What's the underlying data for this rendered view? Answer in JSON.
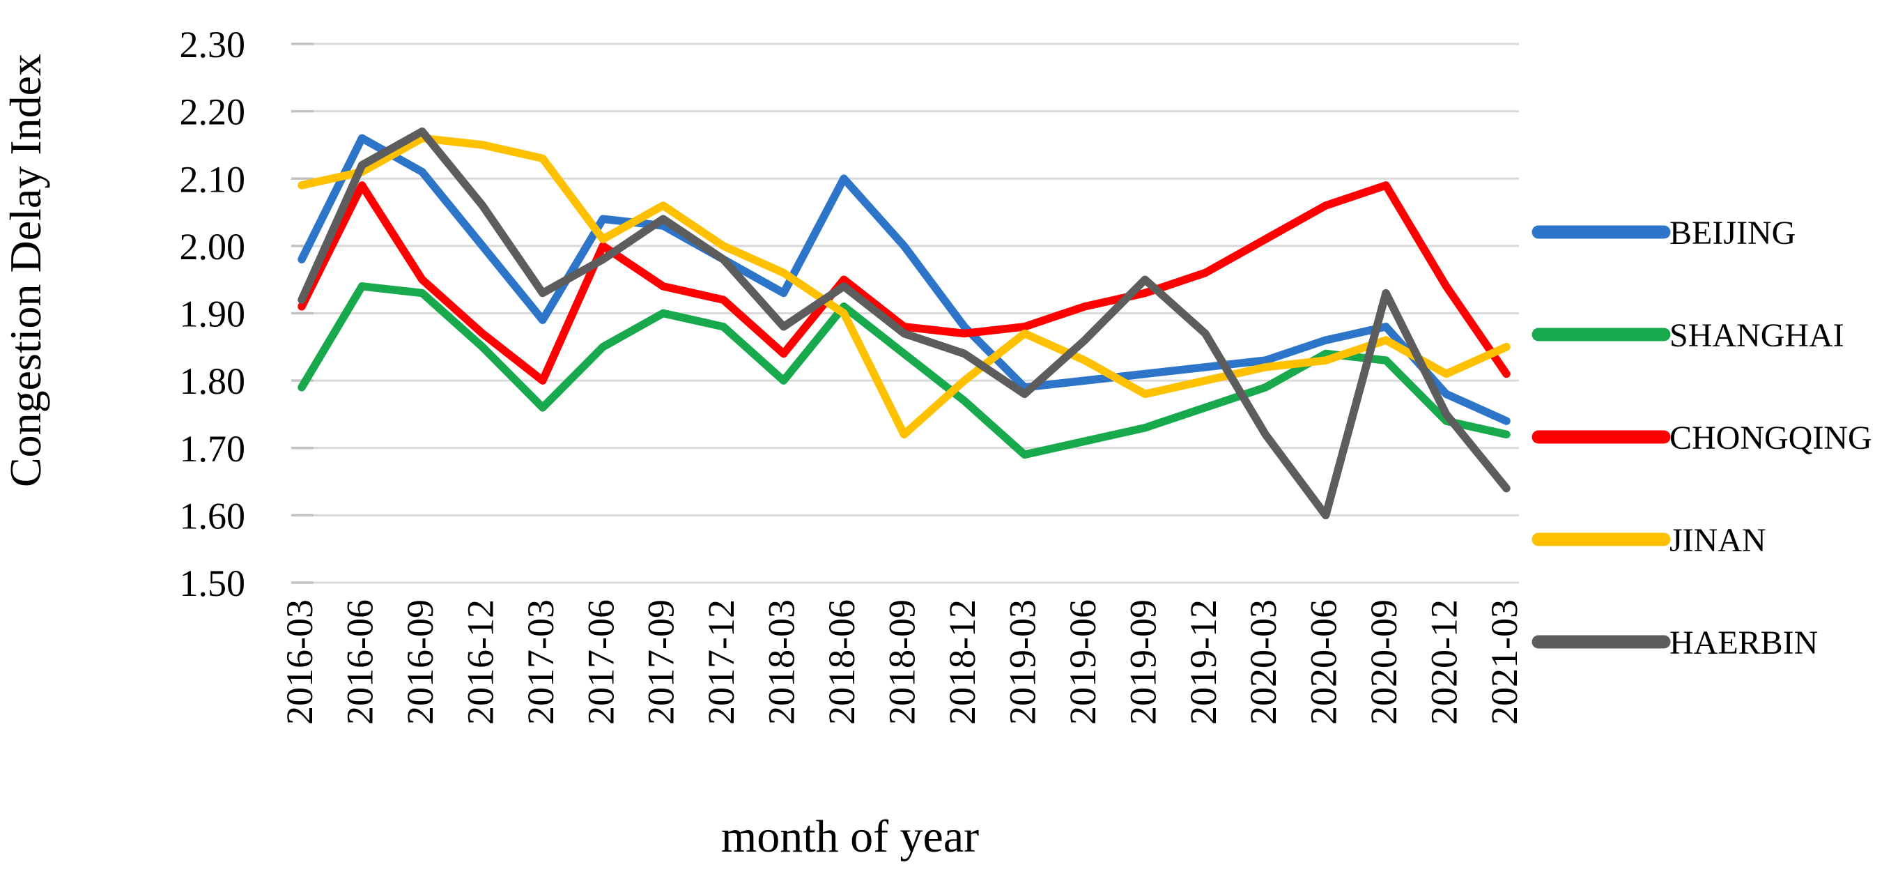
{
  "chart_data": {
    "type": "line",
    "title": "",
    "xlabel": "month of year",
    "ylabel": "Congestion Delay Index",
    "categories": [
      "2016-03",
      "2016-06",
      "2016-09",
      "2016-12",
      "2017-03",
      "2017-06",
      "2017-09",
      "2017-12",
      "2018-03",
      "2018-06",
      "2018-09",
      "2018-12",
      "2019-03",
      "2019-06",
      "2019-09",
      "2019-12",
      "2020-03",
      "2020-06",
      "2020-09",
      "2020-12",
      "2021-03"
    ],
    "series": [
      {
        "name": "BEIJING",
        "color": "#2C75C8",
        "values": [
          1.98,
          2.16,
          2.11,
          2.0,
          1.89,
          2.04,
          2.03,
          1.98,
          1.93,
          2.1,
          2.0,
          1.88,
          1.79,
          1.8,
          1.81,
          1.82,
          1.83,
          1.86,
          1.88,
          1.78,
          1.74
        ]
      },
      {
        "name": "SHANGHAI",
        "color": "#17A94C",
        "values": [
          1.79,
          1.94,
          1.93,
          1.85,
          1.76,
          1.85,
          1.9,
          1.88,
          1.8,
          1.91,
          1.84,
          1.77,
          1.69,
          1.71,
          1.73,
          1.76,
          1.79,
          1.84,
          1.83,
          1.74,
          1.72
        ]
      },
      {
        "name": "CHONGQING",
        "color": "#FE0000",
        "values": [
          1.91,
          2.09,
          1.95,
          1.87,
          1.8,
          2.0,
          1.94,
          1.92,
          1.84,
          1.95,
          1.88,
          1.87,
          1.88,
          1.91,
          1.93,
          1.96,
          2.01,
          2.06,
          2.09,
          1.94,
          1.81
        ]
      },
      {
        "name": "JINAN",
        "color": "#FFC000",
        "values": [
          2.09,
          2.11,
          2.16,
          2.15,
          2.13,
          2.01,
          2.06,
          2.0,
          1.96,
          1.9,
          1.72,
          1.8,
          1.87,
          1.83,
          1.78,
          1.8,
          1.82,
          1.83,
          1.86,
          1.81,
          1.85
        ]
      },
      {
        "name": "HAERBIN",
        "color": "#5D5D5D",
        "values": [
          1.92,
          2.12,
          2.17,
          2.06,
          1.93,
          1.98,
          2.04,
          1.98,
          1.88,
          1.94,
          1.87,
          1.84,
          1.78,
          1.86,
          1.95,
          1.87,
          1.72,
          1.6,
          1.93,
          1.75,
          1.64
        ]
      }
    ],
    "ylim": [
      1.5,
      2.3
    ],
    "ytick_step": 0.1,
    "ytick_labels": [
      "2.30",
      "2.20",
      "2.10",
      "2.00",
      "1.90",
      "1.80",
      "1.70",
      "1.60",
      "1.50"
    ],
    "grid": true,
    "legend_position": "right",
    "colors": {
      "gridline": "#D9D9D9",
      "tick": "#C2C2C2",
      "text": "#000000",
      "background": "#FFFFFF"
    }
  }
}
